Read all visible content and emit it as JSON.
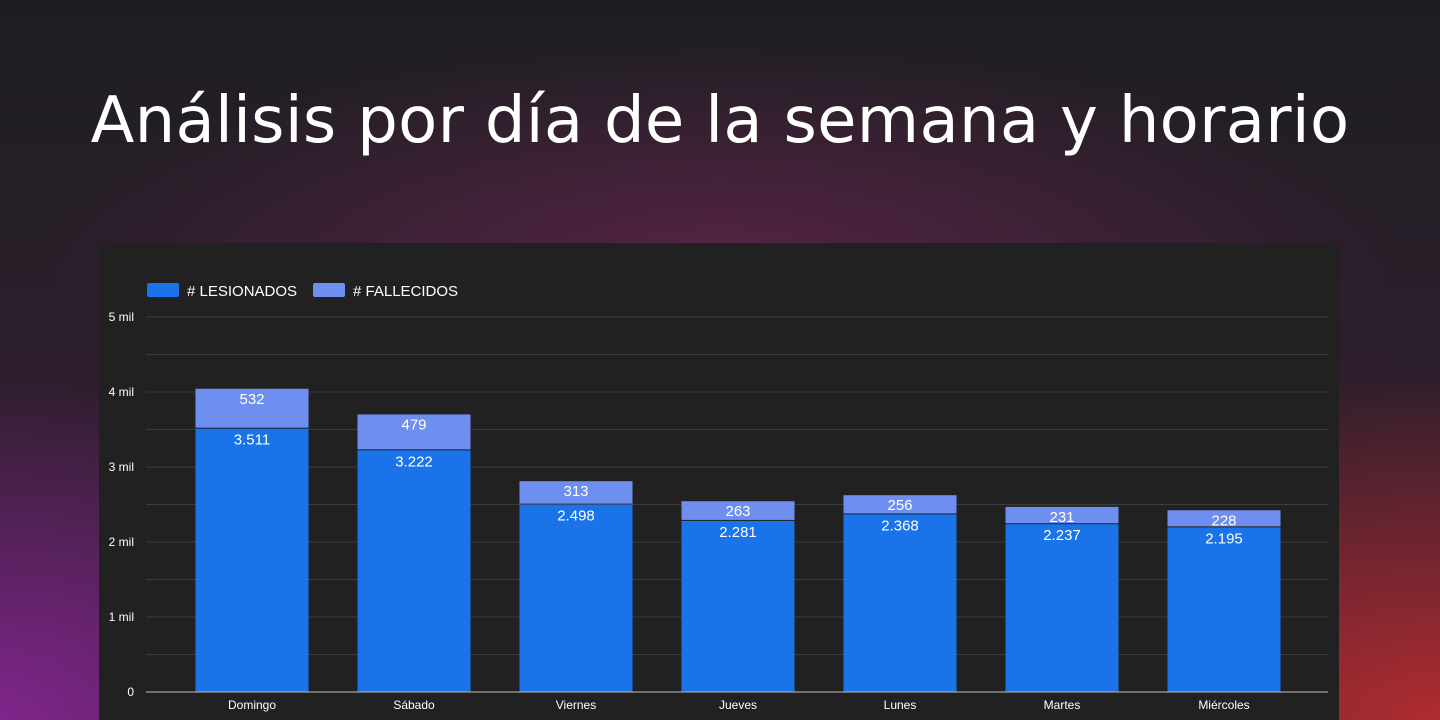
{
  "page": {
    "title": "Análisis por día de la semana y horario"
  },
  "colors": {
    "lesionados": "#1a73e8",
    "fallecidos": "#6e8ff0",
    "panel": "#212121",
    "grid": "#3c3c3c"
  },
  "chart_data": {
    "type": "bar",
    "stacked": true,
    "categories": [
      "Domingo",
      "Sábado",
      "Viernes",
      "Jueves",
      "Lunes",
      "Martes",
      "Miércoles"
    ],
    "series": [
      {
        "name": "# LESIONADOS",
        "values": [
          3511,
          3222,
          2498,
          2281,
          2368,
          2237,
          2195
        ],
        "labels": [
          "3.511",
          "3.222",
          "2.498",
          "2.281",
          "2.368",
          "2.237",
          "2.195"
        ]
      },
      {
        "name": "# FALLECIDOS",
        "values": [
          532,
          479,
          313,
          263,
          256,
          231,
          228
        ],
        "labels": [
          "532",
          "479",
          "313",
          "263",
          "256",
          "231",
          "228"
        ]
      }
    ],
    "yticks": [
      0,
      1000,
      2000,
      3000,
      4000,
      5000
    ],
    "ytick_labels": [
      "0",
      "1 mil",
      "2 mil",
      "3 mil",
      "4 mil",
      "5 mil"
    ],
    "ylim": [
      0,
      5000
    ],
    "grid": true,
    "legend": "top-left"
  }
}
